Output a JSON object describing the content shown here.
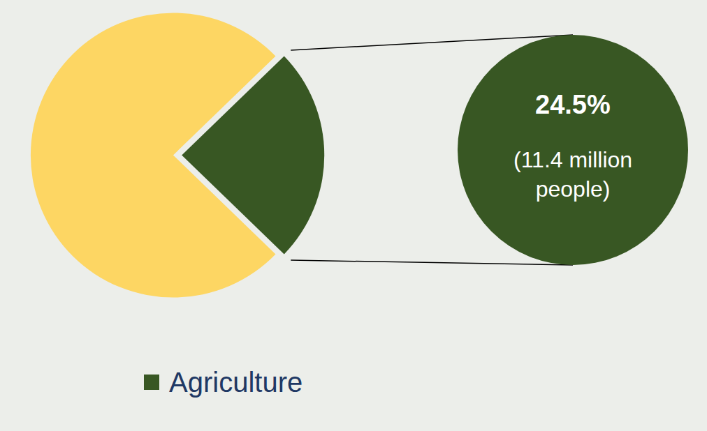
{
  "chart_data": {
    "type": "pie",
    "categories": [
      "Agriculture",
      null
    ],
    "values": [
      24.5,
      75.5
    ],
    "colors": [
      "#385723",
      "#fdd663"
    ],
    "data_labels": true,
    "value_labels": [
      "24.5%",
      null
    ],
    "annotations": [
      "(11.4 million people)"
    ],
    "legend": "bottom"
  }
}
